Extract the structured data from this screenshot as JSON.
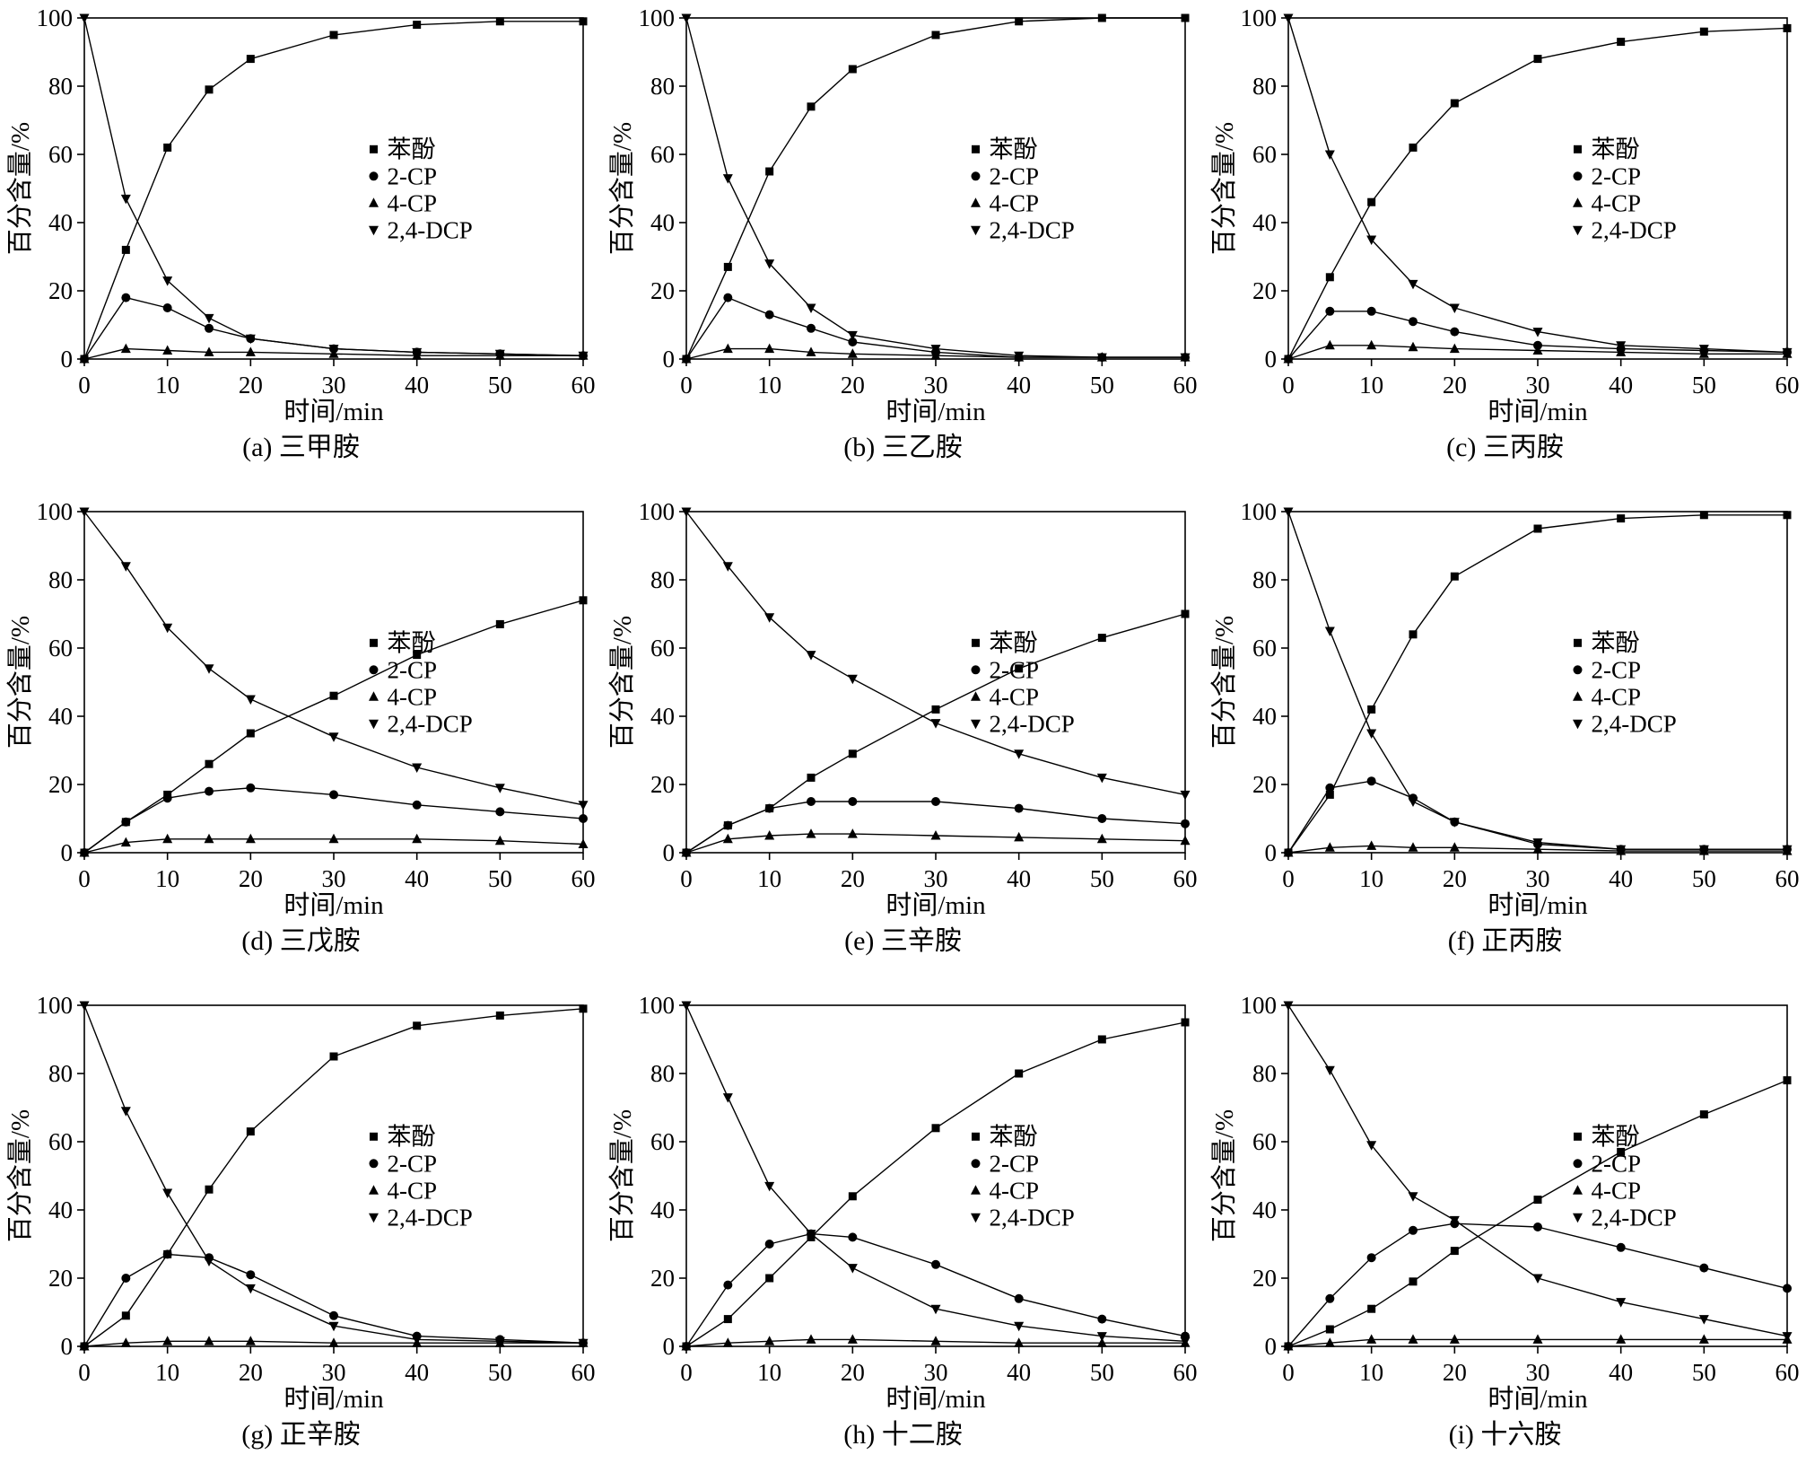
{
  "figure": {
    "background": "#ffffff",
    "line_color": "#000000",
    "xlabel": "时间/min",
    "ylabel": "百分含量/%",
    "legend_labels": [
      "苯酚",
      "2-CP",
      "4-CP",
      "2,4-DCP"
    ]
  },
  "chart_data": [
    {
      "type": "line",
      "caption": "(a) 三甲胺",
      "xlabel": "时间/min",
      "ylabel": "百分含量/%",
      "x": [
        0,
        5,
        10,
        15,
        20,
        30,
        40,
        50,
        60
      ],
      "xlim": [
        0,
        60
      ],
      "ylim": [
        0,
        100
      ],
      "xticks": [
        0,
        10,
        20,
        30,
        40,
        50,
        60
      ],
      "yticks": [
        0,
        20,
        40,
        60,
        80,
        100
      ],
      "color": "#000000",
      "series": [
        {
          "name": "苯酚",
          "marker": "square",
          "values": [
            0,
            32,
            62,
            79,
            88,
            95,
            98,
            99,
            99
          ]
        },
        {
          "name": "2-CP",
          "marker": "circle",
          "values": [
            0,
            18,
            15,
            9,
            6,
            3,
            2,
            1.5,
            1
          ]
        },
        {
          "name": "4-CP",
          "marker": "triangle-up",
          "values": [
            0,
            3,
            2.5,
            2,
            2,
            1.5,
            1,
            1,
            1
          ]
        },
        {
          "name": "2,4-DCP",
          "marker": "triangle-down",
          "values": [
            100,
            47,
            23,
            12,
            6,
            3,
            2,
            1.5,
            1
          ]
        }
      ]
    },
    {
      "type": "line",
      "caption": "(b) 三乙胺",
      "xlabel": "时间/min",
      "ylabel": "百分含量/%",
      "x": [
        0,
        5,
        10,
        15,
        20,
        30,
        40,
        50,
        60
      ],
      "xlim": [
        0,
        60
      ],
      "ylim": [
        0,
        100
      ],
      "xticks": [
        0,
        10,
        20,
        30,
        40,
        50,
        60
      ],
      "yticks": [
        0,
        20,
        40,
        60,
        80,
        100
      ],
      "color": "#000000",
      "series": [
        {
          "name": "苯酚",
          "marker": "square",
          "values": [
            0,
            27,
            55,
            74,
            85,
            95,
            99,
            100,
            100
          ]
        },
        {
          "name": "2-CP",
          "marker": "circle",
          "values": [
            0,
            18,
            13,
            9,
            5,
            2,
            0.5,
            0.5,
            0.5
          ]
        },
        {
          "name": "4-CP",
          "marker": "triangle-up",
          "values": [
            0,
            3,
            3,
            2,
            1.5,
            1,
            0.5,
            0.5,
            0.5
          ]
        },
        {
          "name": "2,4-DCP",
          "marker": "triangle-down",
          "values": [
            100,
            53,
            28,
            15,
            7,
            3,
            1,
            0.5,
            0.5
          ]
        }
      ]
    },
    {
      "type": "line",
      "caption": "(c) 三丙胺",
      "xlabel": "时间/min",
      "ylabel": "百分含量/%",
      "x": [
        0,
        5,
        10,
        15,
        20,
        30,
        40,
        50,
        60
      ],
      "xlim": [
        0,
        60
      ],
      "ylim": [
        0,
        100
      ],
      "xticks": [
        0,
        10,
        20,
        30,
        40,
        50,
        60
      ],
      "yticks": [
        0,
        20,
        40,
        60,
        80,
        100
      ],
      "color": "#000000",
      "series": [
        {
          "name": "苯酚",
          "marker": "square",
          "values": [
            0,
            24,
            46,
            62,
            75,
            88,
            93,
            96,
            97
          ]
        },
        {
          "name": "2-CP",
          "marker": "circle",
          "values": [
            0,
            14,
            14,
            11,
            8,
            4,
            3,
            2.5,
            2
          ]
        },
        {
          "name": "4-CP",
          "marker": "triangle-up",
          "values": [
            0,
            4,
            4,
            3.5,
            3,
            2.5,
            2,
            1.5,
            1.5
          ]
        },
        {
          "name": "2,4-DCP",
          "marker": "triangle-down",
          "values": [
            100,
            60,
            35,
            22,
            15,
            8,
            4,
            3,
            2
          ]
        }
      ]
    },
    {
      "type": "line",
      "caption": "(d) 三戊胺",
      "xlabel": "时间/min",
      "ylabel": "百分含量/%",
      "x": [
        0,
        5,
        10,
        15,
        20,
        30,
        40,
        50,
        60
      ],
      "xlim": [
        0,
        60
      ],
      "ylim": [
        0,
        100
      ],
      "xticks": [
        0,
        10,
        20,
        30,
        40,
        50,
        60
      ],
      "yticks": [
        0,
        20,
        40,
        60,
        80,
        100
      ],
      "color": "#000000",
      "series": [
        {
          "name": "苯酚",
          "marker": "square",
          "values": [
            0,
            9,
            17,
            26,
            35,
            46,
            58,
            67,
            74
          ]
        },
        {
          "name": "2-CP",
          "marker": "circle",
          "values": [
            0,
            9,
            16,
            18,
            19,
            17,
            14,
            12,
            10
          ]
        },
        {
          "name": "4-CP",
          "marker": "triangle-up",
          "values": [
            0,
            3,
            4,
            4,
            4,
            4,
            4,
            3.5,
            2.5
          ]
        },
        {
          "name": "2,4-DCP",
          "marker": "triangle-down",
          "values": [
            100,
            84,
            66,
            54,
            45,
            34,
            25,
            19,
            14
          ]
        }
      ]
    },
    {
      "type": "line",
      "caption": "(e) 三辛胺",
      "xlabel": "时间/min",
      "ylabel": "百分含量/%",
      "x": [
        0,
        5,
        10,
        15,
        20,
        30,
        40,
        50,
        60
      ],
      "xlim": [
        0,
        60
      ],
      "ylim": [
        0,
        100
      ],
      "xticks": [
        0,
        10,
        20,
        30,
        40,
        50,
        60
      ],
      "yticks": [
        0,
        20,
        40,
        60,
        80,
        100
      ],
      "color": "#000000",
      "series": [
        {
          "name": "苯酚",
          "marker": "square",
          "values": [
            0,
            8,
            13,
            22,
            29,
            42,
            54,
            63,
            70
          ]
        },
        {
          "name": "2-CP",
          "marker": "circle",
          "values": [
            0,
            8,
            13,
            15,
            15,
            15,
            13,
            10,
            8.5
          ]
        },
        {
          "name": "4-CP",
          "marker": "triangle-up",
          "values": [
            0,
            4,
            5,
            5.5,
            5.5,
            5,
            4.5,
            4,
            3.5
          ]
        },
        {
          "name": "2,4-DCP",
          "marker": "triangle-down",
          "values": [
            100,
            84,
            69,
            58,
            51,
            38,
            29,
            22,
            17
          ]
        }
      ]
    },
    {
      "type": "line",
      "caption": "(f) 正丙胺",
      "xlabel": "时间/min",
      "ylabel": "百分含量/%",
      "x": [
        0,
        5,
        10,
        15,
        20,
        30,
        40,
        50,
        60
      ],
      "xlim": [
        0,
        60
      ],
      "ylim": [
        0,
        100
      ],
      "xticks": [
        0,
        10,
        20,
        30,
        40,
        50,
        60
      ],
      "yticks": [
        0,
        20,
        40,
        60,
        80,
        100
      ],
      "color": "#000000",
      "series": [
        {
          "name": "苯酚",
          "marker": "square",
          "values": [
            0,
            17,
            42,
            64,
            81,
            95,
            98,
            99,
            99
          ]
        },
        {
          "name": "2-CP",
          "marker": "circle",
          "values": [
            0,
            19,
            21,
            16,
            9,
            2.5,
            1,
            1,
            1
          ]
        },
        {
          "name": "4-CP",
          "marker": "triangle-up",
          "values": [
            0,
            1.5,
            2,
            1.5,
            1.5,
            1,
            0.5,
            0.5,
            0.5
          ]
        },
        {
          "name": "2,4-DCP",
          "marker": "triangle-down",
          "values": [
            100,
            65,
            35,
            15,
            9,
            3,
            1,
            1,
            1
          ]
        }
      ]
    },
    {
      "type": "line",
      "caption": "(g) 正辛胺",
      "xlabel": "时间/min",
      "ylabel": "百分含量/%",
      "x": [
        0,
        5,
        10,
        15,
        20,
        30,
        40,
        50,
        60
      ],
      "xlim": [
        0,
        60
      ],
      "ylim": [
        0,
        100
      ],
      "xticks": [
        0,
        10,
        20,
        30,
        40,
        50,
        60
      ],
      "yticks": [
        0,
        20,
        40,
        60,
        80,
        100
      ],
      "color": "#000000",
      "series": [
        {
          "name": "苯酚",
          "marker": "square",
          "values": [
            0,
            9,
            27,
            46,
            63,
            85,
            94,
            97,
            99
          ]
        },
        {
          "name": "2-CP",
          "marker": "circle",
          "values": [
            0,
            20,
            27,
            26,
            21,
            9,
            3,
            2,
            1
          ]
        },
        {
          "name": "4-CP",
          "marker": "triangle-up",
          "values": [
            0,
            1,
            1.5,
            1.5,
            1.5,
            1,
            1,
            1,
            1
          ]
        },
        {
          "name": "2,4-DCP",
          "marker": "triangle-down",
          "values": [
            100,
            69,
            45,
            25,
            17,
            6,
            2,
            1.5,
            1
          ]
        }
      ]
    },
    {
      "type": "line",
      "caption": "(h) 十二胺",
      "xlabel": "时间/min",
      "ylabel": "百分含量/%",
      "x": [
        0,
        5,
        10,
        15,
        20,
        30,
        40,
        50,
        60
      ],
      "xlim": [
        0,
        60
      ],
      "ylim": [
        0,
        100
      ],
      "xticks": [
        0,
        10,
        20,
        30,
        40,
        50,
        60
      ],
      "yticks": [
        0,
        20,
        40,
        60,
        80,
        100
      ],
      "color": "#000000",
      "series": [
        {
          "name": "苯酚",
          "marker": "square",
          "values": [
            0,
            8,
            20,
            32,
            44,
            64,
            80,
            90,
            95
          ]
        },
        {
          "name": "2-CP",
          "marker": "circle",
          "values": [
            0,
            18,
            30,
            33,
            32,
            24,
            14,
            8,
            3
          ]
        },
        {
          "name": "4-CP",
          "marker": "triangle-up",
          "values": [
            0,
            1,
            1.5,
            2,
            2,
            1.5,
            1,
            1,
            1
          ]
        },
        {
          "name": "2,4-DCP",
          "marker": "triangle-down",
          "values": [
            100,
            73,
            47,
            33,
            23,
            11,
            6,
            3,
            1.5
          ]
        }
      ]
    },
    {
      "type": "line",
      "caption": "(i) 十六胺",
      "xlabel": "时间/min",
      "ylabel": "百分含量/%",
      "x": [
        0,
        5,
        10,
        15,
        20,
        30,
        40,
        50,
        60
      ],
      "xlim": [
        0,
        60
      ],
      "ylim": [
        0,
        100
      ],
      "xticks": [
        0,
        10,
        20,
        30,
        40,
        50,
        60
      ],
      "yticks": [
        0,
        20,
        40,
        60,
        80,
        100
      ],
      "color": "#000000",
      "series": [
        {
          "name": "苯酚",
          "marker": "square",
          "values": [
            0,
            5,
            11,
            19,
            28,
            43,
            57,
            68,
            78
          ]
        },
        {
          "name": "2-CP",
          "marker": "circle",
          "values": [
            0,
            14,
            26,
            34,
            36,
            35,
            29,
            23,
            17
          ]
        },
        {
          "name": "4-CP",
          "marker": "triangle-up",
          "values": [
            0,
            1,
            2,
            2,
            2,
            2,
            2,
            2,
            2
          ]
        },
        {
          "name": "2,4-DCP",
          "marker": "triangle-down",
          "values": [
            100,
            81,
            59,
            44,
            37,
            20,
            13,
            8,
            3
          ]
        }
      ]
    }
  ]
}
